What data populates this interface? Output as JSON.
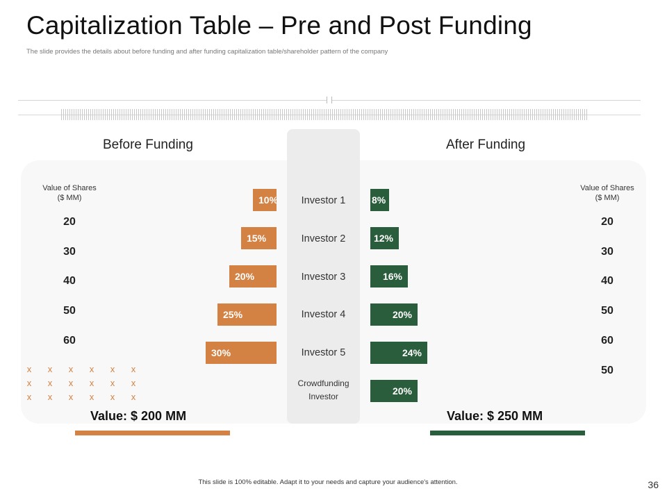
{
  "title": "Capitalization Table – Pre and Post Funding",
  "subtitle": "The slide provides the details about before funding and after funding capitalization table/shareholder pattern of the company",
  "before": {
    "heading": "Before Funding",
    "shares_label_line1": "Value of Shares",
    "shares_label_line2": "($ MM)",
    "share_values": [
      "20",
      "30",
      "40",
      "50",
      "60"
    ],
    "percents": [
      "10%",
      "15%",
      "20%",
      "25%",
      "30%"
    ],
    "percent_values": [
      10,
      15,
      20,
      25,
      30
    ],
    "x_marks": [
      "x",
      "x",
      "x",
      "x",
      "x",
      "x",
      "x",
      "x",
      "x",
      "x",
      "x",
      "x",
      "x",
      "x",
      "x",
      "x",
      "x",
      "x"
    ],
    "total": "Value: $ 200 MM",
    "color": "#d38244"
  },
  "after": {
    "heading": "After Funding",
    "shares_label_line1": "Value of Shares",
    "shares_label_line2": "($ MM)",
    "share_values": [
      "20",
      "30",
      "40",
      "50",
      "60",
      "50"
    ],
    "percents": [
      "8%",
      "12%",
      "16%",
      "20%",
      "24%",
      "20%"
    ],
    "percent_values": [
      8,
      12,
      16,
      20,
      24,
      20
    ],
    "total": "Value: $ 250 MM",
    "color": "#2a5d3c"
  },
  "investors": [
    "Investor 1",
    "Investor 2",
    "Investor 3",
    "Investor 4",
    "Investor 5"
  ],
  "crowdfunding": {
    "line1": "Crowdfunding",
    "line2": "Investor"
  },
  "footer": "This slide is 100% editable. Adapt it to your needs and capture your audience's attention.",
  "page_number": "36"
}
